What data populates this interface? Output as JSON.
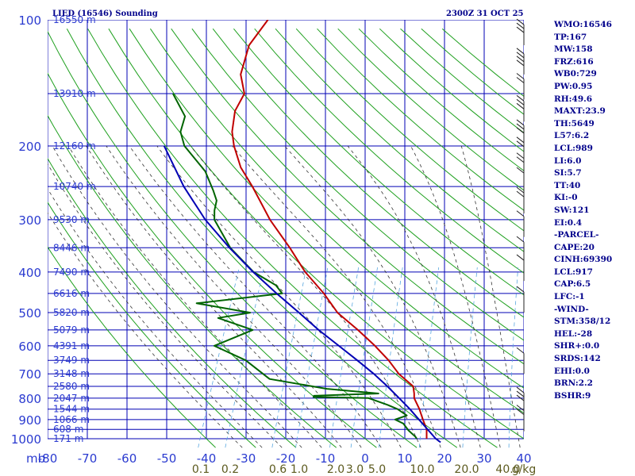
{
  "chart_data": {
    "type": "skew-t log-p sounding",
    "title": "LIED (16546) Sounding",
    "datetime": "2300Z 31 OCT 25",
    "pressure_unit_label": "mb",
    "pressure_ticks": [
      100,
      200,
      300,
      400,
      500,
      600,
      700,
      800,
      900,
      1000
    ],
    "temperature_ticks": [
      -80,
      -70,
      -60,
      -50,
      -40,
      -30,
      -20,
      -10,
      0,
      10,
      20,
      30,
      40
    ],
    "temperature_range_c": [
      -80,
      40
    ],
    "mixing_ratio_label_values": [
      "0.1",
      "0.2",
      "0.6",
      "1.0",
      "2.0",
      "3.0",
      "5.0",
      "10.0",
      "20.0",
      "40.0"
    ],
    "mixing_ratio_unit": "g/kg",
    "height_labels": [
      {
        "p": 100,
        "text": "16550 m"
      },
      {
        "p": 150,
        "text": "13910 m"
      },
      {
        "p": 200,
        "text": "12160 m"
      },
      {
        "p": 250,
        "text": "10740 m"
      },
      {
        "p": 300,
        "text": "9530 m"
      },
      {
        "p": 350,
        "text": "8446 m"
      },
      {
        "p": 400,
        "text": "7490 m"
      },
      {
        "p": 450,
        "text": "6616 m"
      },
      {
        "p": 500,
        "text": "5820 m"
      },
      {
        "p": 550,
        "text": "5079 m"
      },
      {
        "p": 600,
        "text": "4391 m"
      },
      {
        "p": 650,
        "text": "3749 m"
      },
      {
        "p": 700,
        "text": "3148 m"
      },
      {
        "p": 750,
        "text": "2580 m"
      },
      {
        "p": 800,
        "text": "2047 m"
      },
      {
        "p": 850,
        "text": "1544 m"
      },
      {
        "p": 900,
        "text": "1066 m"
      },
      {
        "p": 950,
        "text": "608 m"
      },
      {
        "p": 1000,
        "text": "171 m"
      }
    ],
    "series": [
      {
        "color": "#c00000",
        "points": [
          [
            100,
            -69.5
          ],
          [
            115,
            -71.5
          ],
          [
            135,
            -70.5
          ],
          [
            150,
            -67.5
          ],
          [
            165,
            -68.0
          ],
          [
            185,
            -66.5
          ],
          [
            200,
            -64.5
          ],
          [
            225,
            -60.5
          ],
          [
            250,
            -55.5
          ],
          [
            300,
            -47.5
          ],
          [
            350,
            -39.5
          ],
          [
            400,
            -33.0
          ],
          [
            450,
            -26.0
          ],
          [
            500,
            -20.5
          ],
          [
            550,
            -13.5
          ],
          [
            600,
            -7.5
          ],
          [
            650,
            -2.5
          ],
          [
            700,
            1.5
          ],
          [
            750,
            6.5
          ],
          [
            780,
            7.5
          ],
          [
            800,
            8.0
          ],
          [
            850,
            10.5
          ],
          [
            900,
            12.5
          ],
          [
            950,
            14.5
          ],
          [
            1000,
            15.5
          ]
        ]
      },
      {
        "color": "#006400",
        "points": [
          [
            150,
            -85.5
          ],
          [
            170,
            -80.0
          ],
          [
            185,
            -79.5
          ],
          [
            200,
            -77.0
          ],
          [
            230,
            -69.0
          ],
          [
            255,
            -65.0
          ],
          [
            270,
            -63.0
          ],
          [
            285,
            -62.5
          ],
          [
            300,
            -61.5
          ],
          [
            350,
            -54.5
          ],
          [
            400,
            -46.0
          ],
          [
            430,
            -39.0
          ],
          [
            450,
            -36.5
          ],
          [
            475,
            -57.0
          ],
          [
            500,
            -42.5
          ],
          [
            515,
            -50.0
          ],
          [
            550,
            -40.0
          ],
          [
            600,
            -48.0
          ],
          [
            650,
            -38.5
          ],
          [
            720,
            -30.5
          ],
          [
            760,
            -15.0
          ],
          [
            780,
            -1.5
          ],
          [
            790,
            -17.5
          ],
          [
            795,
            -17.5
          ],
          [
            800,
            -3.5
          ],
          [
            830,
            2.0
          ],
          [
            850,
            5.0
          ],
          [
            880,
            8.0
          ],
          [
            900,
            5.5
          ],
          [
            920,
            8.0
          ],
          [
            955,
            10.0
          ],
          [
            990,
            12.5
          ],
          [
            1000,
            13.0
          ]
        ]
      },
      {
        "color": "#0000b4",
        "points": [
          [
            1020,
            19.4
          ],
          [
            1000,
            17.8
          ],
          [
            900,
            11.5
          ],
          [
            850,
            8.1
          ],
          [
            800,
            4.2
          ],
          [
            750,
            0.0
          ],
          [
            700,
            -4.8
          ],
          [
            650,
            -10.4
          ],
          [
            600,
            -16.6
          ],
          [
            550,
            -23.4
          ],
          [
            500,
            -30.2
          ],
          [
            450,
            -37.9
          ],
          [
            400,
            -46.1
          ],
          [
            350,
            -54.7
          ],
          [
            300,
            -63.8
          ],
          [
            250,
            -72.8
          ],
          [
            200,
            -82.1
          ]
        ]
      }
    ],
    "wind_barbs_present": true
  },
  "indices": [
    "WMO:16546",
    "TP:167",
    "MW:158",
    "FRZ:616",
    "WB0:729",
    "PW:0.95",
    "RH:49.6",
    "MAXT:23.9",
    "TH:5649",
    "L57:6.2",
    "LCL:989",
    "LI:6.0",
    "SI:5.7",
    "TT:40",
    "KI:-0",
    "SW:121",
    "EI:0.4",
    "-PARCEL-",
    "CAPE:20",
    "CINH:69390",
    "LCL:917",
    "CAP:6.5",
    "LFC:-1",
    "-WIND-",
    "STM:358/12",
    "HEL:-28",
    "SHR+:0.0",
    "SRDS:142",
    "EHI:0.0",
    "BRN:2.2",
    "BSHR:9"
  ],
  "colors": {
    "grid": "#0000b4",
    "dry_adiabat": "#1fa01f",
    "moist_adiabat": "#333333",
    "mixing_ratio": "#5aa8e0",
    "temperature": "#c00000",
    "dewpoint": "#006400",
    "parcel": "#0000b4",
    "text": "#00008b"
  }
}
